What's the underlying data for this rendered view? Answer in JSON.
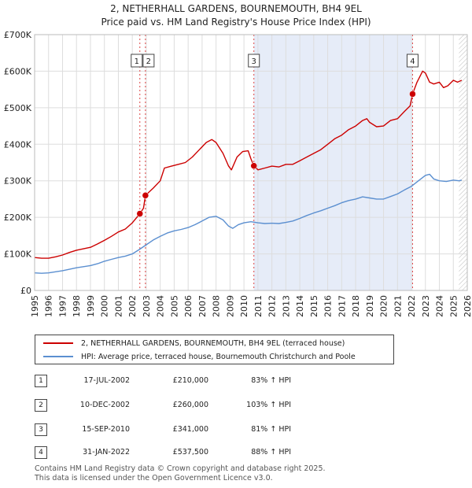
{
  "title_line1": "2, NETHERHALL GARDENS, BOURNEMOUTH, BH4 9EL",
  "title_line2": "Price paid vs. HM Land Registry's House Price Index (HPI)",
  "legend": {
    "property": "2, NETHERHALL GARDENS, BOURNEMOUTH, BH4 9EL (terraced house)",
    "hpi": "HPI: Average price, terraced house, Bournemouth Christchurch and Poole"
  },
  "colors": {
    "property": "#cc0000",
    "hpi": "#5b8fd0",
    "shade": "#e6ecf8",
    "grid": "#dddddd"
  },
  "transactions": [
    {
      "num": "1",
      "date": "17-JUL-2002",
      "price": "£210,000",
      "hpi_change": "83% ↑ HPI",
      "x": 2002.54,
      "y": 210000
    },
    {
      "num": "2",
      "date": "10-DEC-2002",
      "price": "£260,000",
      "hpi_change": "103% ↑ HPI",
      "x": 2002.94,
      "y": 260000
    },
    {
      "num": "3",
      "date": "15-SEP-2010",
      "price": "£341,000",
      "hpi_change": "81% ↑ HPI",
      "x": 2010.71,
      "y": 341000
    },
    {
      "num": "4",
      "date": "31-JAN-2022",
      "price": "£537,500",
      "hpi_change": "88% ↑ HPI",
      "x": 2022.08,
      "y": 537500
    }
  ],
  "footer_line1": "Contains HM Land Registry data © Crown copyright and database right 2025.",
  "footer_line2": "This data is licensed under the Open Government Licence v3.0.",
  "chart_data": {
    "type": "line",
    "title": "2, NETHERHALL GARDENS, BOURNEMOUTH, BH4 9EL",
    "subtitle": "Price paid vs. HM Land Registry's House Price Index (HPI)",
    "xlabel": "",
    "ylabel": "",
    "xlim": [
      1995,
      2026
    ],
    "ylim": [
      0,
      700000
    ],
    "x_ticks": [
      "1995",
      "1996",
      "1997",
      "1998",
      "1999",
      "2000",
      "2001",
      "2002",
      "2003",
      "2004",
      "2005",
      "2006",
      "2007",
      "2008",
      "2009",
      "2010",
      "2011",
      "2012",
      "2013",
      "2014",
      "2015",
      "2016",
      "2017",
      "2018",
      "2019",
      "2020",
      "2021",
      "2022",
      "2023",
      "2024",
      "2025",
      "2026"
    ],
    "y_ticks": [
      {
        "value": 0,
        "label": "£0"
      },
      {
        "value": 100000,
        "label": "£100K"
      },
      {
        "value": 200000,
        "label": "£200K"
      },
      {
        "value": 300000,
        "label": "£300K"
      },
      {
        "value": 400000,
        "label": "£400K"
      },
      {
        "value": 500000,
        "label": "£500K"
      },
      {
        "value": 600000,
        "label": "£600K"
      },
      {
        "value": 700000,
        "label": "£700K"
      }
    ],
    "shaded_range": [
      2010.71,
      2022.08
    ],
    "future_hatch_from": 2025.4,
    "series": [
      {
        "name": "2, NETHERHALL GARDENS, BOURNEMOUTH, BH4 9EL (terraced house)",
        "points": [
          [
            1995.0,
            90000
          ],
          [
            1995.5,
            88000
          ],
          [
            1996.0,
            88000
          ],
          [
            1996.5,
            92000
          ],
          [
            1997.0,
            97000
          ],
          [
            1997.5,
            104000
          ],
          [
            1998.0,
            110000
          ],
          [
            1998.5,
            114000
          ],
          [
            1999.0,
            118000
          ],
          [
            1999.5,
            127000
          ],
          [
            2000.0,
            137000
          ],
          [
            2000.5,
            148000
          ],
          [
            2001.0,
            160000
          ],
          [
            2001.5,
            168000
          ],
          [
            2002.0,
            185000
          ],
          [
            2002.54,
            210000
          ],
          [
            2002.8,
            225000
          ],
          [
            2002.94,
            260000
          ],
          [
            2003.5,
            280000
          ],
          [
            2004.0,
            300000
          ],
          [
            2004.3,
            335000
          ],
          [
            2004.8,
            340000
          ],
          [
            2005.3,
            345000
          ],
          [
            2005.8,
            350000
          ],
          [
            2006.3,
            365000
          ],
          [
            2006.8,
            385000
          ],
          [
            2007.3,
            405000
          ],
          [
            2007.7,
            413000
          ],
          [
            2008.0,
            405000
          ],
          [
            2008.5,
            375000
          ],
          [
            2008.9,
            340000
          ],
          [
            2009.1,
            330000
          ],
          [
            2009.5,
            365000
          ],
          [
            2009.9,
            380000
          ],
          [
            2010.3,
            382000
          ],
          [
            2010.5,
            360000
          ],
          [
            2010.71,
            341000
          ],
          [
            2011.0,
            330000
          ],
          [
            2011.5,
            335000
          ],
          [
            2012.0,
            340000
          ],
          [
            2012.5,
            338000
          ],
          [
            2013.0,
            345000
          ],
          [
            2013.5,
            345000
          ],
          [
            2014.0,
            355000
          ],
          [
            2014.5,
            365000
          ],
          [
            2015.0,
            375000
          ],
          [
            2015.5,
            385000
          ],
          [
            2016.0,
            400000
          ],
          [
            2016.5,
            415000
          ],
          [
            2017.0,
            425000
          ],
          [
            2017.5,
            440000
          ],
          [
            2018.0,
            450000
          ],
          [
            2018.5,
            465000
          ],
          [
            2018.8,
            470000
          ],
          [
            2019.0,
            460000
          ],
          [
            2019.5,
            448000
          ],
          [
            2020.0,
            450000
          ],
          [
            2020.5,
            465000
          ],
          [
            2021.0,
            470000
          ],
          [
            2021.5,
            490000
          ],
          [
            2021.9,
            505000
          ],
          [
            2022.08,
            537500
          ],
          [
            2022.4,
            570000
          ],
          [
            2022.8,
            600000
          ],
          [
            2023.0,
            595000
          ],
          [
            2023.3,
            570000
          ],
          [
            2023.6,
            565000
          ],
          [
            2024.0,
            570000
          ],
          [
            2024.3,
            555000
          ],
          [
            2024.6,
            560000
          ],
          [
            2025.0,
            575000
          ],
          [
            2025.3,
            570000
          ],
          [
            2025.6,
            575000
          ]
        ]
      },
      {
        "name": "HPI: Average price, terraced house, Bournemouth Christchurch and Poole",
        "points": [
          [
            1995.0,
            48000
          ],
          [
            1995.5,
            47000
          ],
          [
            1996.0,
            48000
          ],
          [
            1996.5,
            51000
          ],
          [
            1997.0,
            54000
          ],
          [
            1997.5,
            58000
          ],
          [
            1998.0,
            62000
          ],
          [
            1998.5,
            65000
          ],
          [
            1999.0,
            68000
          ],
          [
            1999.5,
            73000
          ],
          [
            2000.0,
            80000
          ],
          [
            2000.5,
            85000
          ],
          [
            2001.0,
            90000
          ],
          [
            2001.5,
            94000
          ],
          [
            2002.0,
            100000
          ],
          [
            2002.5,
            112000
          ],
          [
            2003.0,
            125000
          ],
          [
            2003.5,
            138000
          ],
          [
            2004.0,
            148000
          ],
          [
            2004.5,
            157000
          ],
          [
            2005.0,
            163000
          ],
          [
            2005.5,
            167000
          ],
          [
            2006.0,
            172000
          ],
          [
            2006.5,
            180000
          ],
          [
            2007.0,
            190000
          ],
          [
            2007.5,
            200000
          ],
          [
            2008.0,
            203000
          ],
          [
            2008.5,
            193000
          ],
          [
            2008.9,
            176000
          ],
          [
            2009.2,
            170000
          ],
          [
            2009.6,
            180000
          ],
          [
            2010.0,
            185000
          ],
          [
            2010.5,
            188000
          ],
          [
            2011.0,
            185000
          ],
          [
            2011.5,
            183000
          ],
          [
            2012.0,
            184000
          ],
          [
            2012.5,
            183000
          ],
          [
            2013.0,
            186000
          ],
          [
            2013.5,
            190000
          ],
          [
            2014.0,
            197000
          ],
          [
            2014.5,
            205000
          ],
          [
            2015.0,
            212000
          ],
          [
            2015.5,
            218000
          ],
          [
            2016.0,
            225000
          ],
          [
            2016.5,
            232000
          ],
          [
            2017.0,
            240000
          ],
          [
            2017.5,
            246000
          ],
          [
            2018.0,
            250000
          ],
          [
            2018.5,
            256000
          ],
          [
            2019.0,
            253000
          ],
          [
            2019.5,
            250000
          ],
          [
            2020.0,
            250000
          ],
          [
            2020.5,
            257000
          ],
          [
            2021.0,
            264000
          ],
          [
            2021.5,
            275000
          ],
          [
            2022.0,
            285000
          ],
          [
            2022.5,
            300000
          ],
          [
            2023.0,
            315000
          ],
          [
            2023.3,
            318000
          ],
          [
            2023.6,
            305000
          ],
          [
            2024.0,
            300000
          ],
          [
            2024.5,
            298000
          ],
          [
            2025.0,
            302000
          ],
          [
            2025.4,
            300000
          ],
          [
            2025.6,
            302000
          ]
        ]
      }
    ]
  }
}
